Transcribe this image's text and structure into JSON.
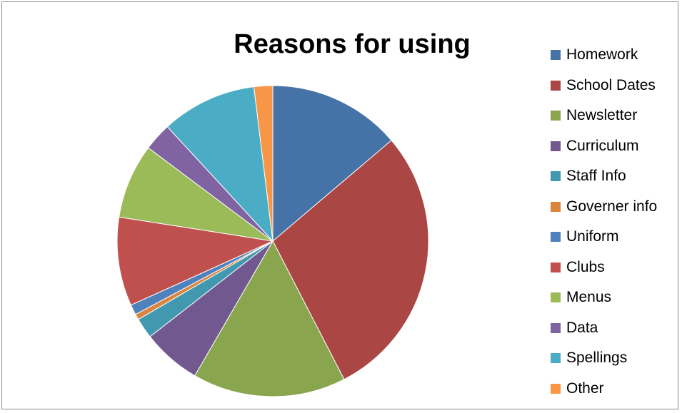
{
  "chart_data": {
    "type": "pie",
    "title": "Reasons for using",
    "categories": [
      "Homework",
      "School Dates",
      "Newsletter",
      "Curriculum",
      "Staff Info",
      "Governer info",
      "Uniform",
      "Clubs",
      "Menus",
      "Data",
      "Spellings",
      "Other"
    ],
    "values": [
      14.2,
      29.5,
      16.4,
      6.3,
      2.2,
      0.6,
      1.1,
      9.5,
      8.0,
      3.0,
      10.2,
      2.0
    ],
    "colors": [
      "#4572a7",
      "#aa4643",
      "#89a54e",
      "#71588f",
      "#4198af",
      "#db843d",
      "#4f81bd",
      "#c0504d",
      "#9bbb59",
      "#8064a2",
      "#4bacc6",
      "#f79646"
    ],
    "legend_position": "right"
  }
}
